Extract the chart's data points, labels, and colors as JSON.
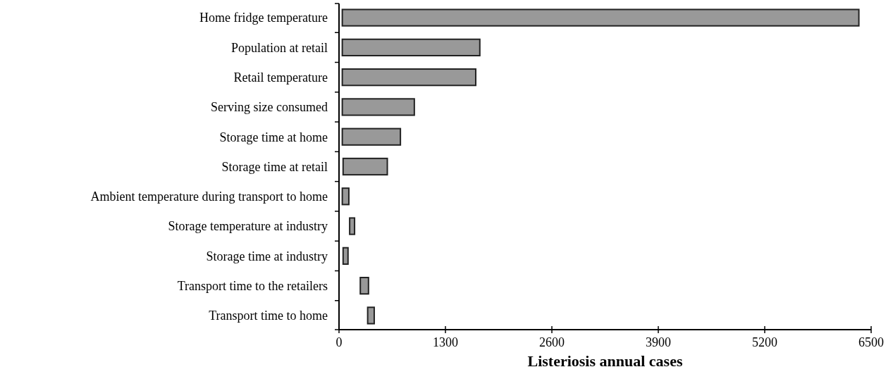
{
  "chart_data": {
    "type": "bar",
    "orientation": "horizontal",
    "xlabel": "Listeriosis annual cases",
    "categories": [
      "Home fridge temperature",
      "Population at retail",
      "Retail temperature",
      "Serving size consumed",
      "Storage time at home",
      "Storage time at retail",
      "Ambient temperature during transport to home",
      "Storage temperature at industry",
      "Storage time at industry",
      "Transport time to the retailers",
      "Transport time to home"
    ],
    "base": [
      40,
      40,
      40,
      40,
      40,
      50,
      40,
      130,
      50,
      260,
      350
    ],
    "values": [
      6310,
      1680,
      1630,
      880,
      710,
      540,
      80,
      60,
      60,
      100,
      80
    ],
    "color": "#999999",
    "xlim": [
      0,
      6500
    ],
    "xticks": [
      0,
      1300,
      2600,
      3900,
      5200,
      6500
    ],
    "grid": false
  }
}
